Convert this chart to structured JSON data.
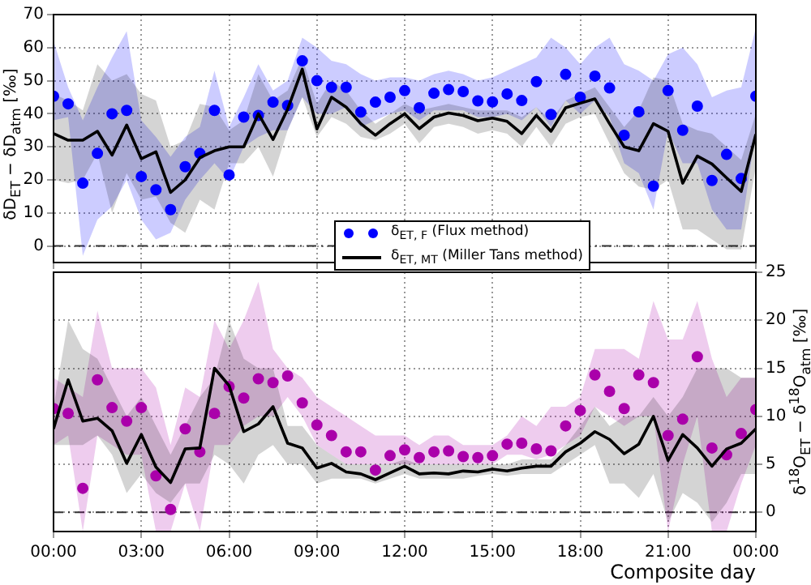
{
  "chart_data": [
    {
      "type": "line",
      "ylabel": "δD$_{ET}$ − δD$_{atm}$ [‰]",
      "x": [
        0,
        0.5,
        1,
        1.5,
        2,
        2.5,
        3,
        3.5,
        4,
        4.5,
        5,
        5.5,
        6,
        6.5,
        7,
        7.5,
        8,
        8.5,
        9,
        9.5,
        10,
        10.5,
        11,
        11.5,
        12,
        12.5,
        13,
        13.5,
        14,
        14.5,
        15,
        15.5,
        16,
        16.5,
        17,
        17.5,
        18,
        18.5,
        19,
        19.5,
        20,
        20.5,
        21,
        21.5,
        22,
        22.5,
        23,
        23.5,
        24
      ],
      "series": [
        {
          "name": "δ$_{ET, F}$ (Flux method)",
          "type": "scatter",
          "marker": "circle",
          "color": "#0000ff",
          "values": [
            45.3,
            43,
            19,
            28,
            40,
            41,
            21,
            17,
            11,
            24,
            28,
            41,
            21.5,
            39,
            39.5,
            43.5,
            42.5,
            56,
            50,
            48,
            48,
            40.5,
            43.5,
            45,
            47,
            41.8,
            46.2,
            47.3,
            46.7,
            43.9,
            43.6,
            46,
            44,
            49.7,
            39.8,
            51.9,
            45,
            51.4,
            47.8,
            33.5,
            40.6,
            18.1,
            47,
            35,
            42.3,
            19.8,
            27.7,
            20.4,
            45.3
          ],
          "lower": [
            38,
            39,
            -3,
            8,
            12,
            20,
            8,
            2,
            4,
            14,
            20,
            25,
            20,
            30,
            33,
            35,
            35,
            45,
            40,
            40,
            42,
            36,
            38,
            40,
            41,
            38,
            41,
            41,
            41,
            39,
            39,
            40,
            38,
            42,
            36,
            44,
            40,
            44,
            39,
            25,
            22,
            11,
            35,
            25,
            25,
            11,
            5,
            5,
            35
          ],
          "upper": [
            62,
            48,
            38,
            48,
            57,
            65,
            38,
            33,
            27,
            33,
            36,
            53,
            36,
            45,
            55,
            47,
            50,
            63,
            60,
            56,
            55,
            52,
            50,
            51,
            51,
            50,
            52,
            53,
            52,
            50,
            51,
            53,
            55,
            57,
            63,
            60,
            55,
            60,
            63,
            55,
            53,
            50,
            58,
            60,
            55,
            45,
            47,
            48,
            66
          ]
        },
        {
          "name": "δ$_{ET, MT}$ (Miller Tans method)",
          "type": "line",
          "marker": "none",
          "line_style": "solid",
          "color": "#000000",
          "values": [
            34,
            32,
            32,
            34.7,
            27.5,
            36.6,
            26.4,
            28.5,
            16.2,
            20,
            26.7,
            28.8,
            30,
            30,
            40,
            32.2,
            41.4,
            53.5,
            35.4,
            45,
            42,
            37,
            33.5,
            37,
            40,
            35.5,
            39,
            40.2,
            39.5,
            37.9,
            38.7,
            37.7,
            34,
            39.5,
            34.7,
            41.8,
            43.2,
            44.5,
            37,
            30,
            28.8,
            37,
            34.7,
            19,
            27.2,
            24.8,
            20.6,
            16.5,
            33.8
          ],
          "lower": [
            20,
            19,
            20,
            28,
            10,
            22,
            14,
            15,
            7,
            4,
            14,
            11,
            25,
            25,
            30,
            21,
            35,
            45,
            33,
            39,
            37,
            33,
            32,
            34,
            37,
            31,
            36,
            37,
            36,
            34,
            35,
            34,
            30,
            36,
            30,
            37,
            39,
            40,
            31,
            22,
            18,
            17,
            20,
            5,
            5,
            2,
            -1,
            -1,
            24
          ],
          "upper": [
            46,
            44,
            41,
            55,
            50,
            52,
            46,
            44,
            30,
            32,
            43,
            42,
            35,
            38,
            52,
            44,
            47,
            57,
            43,
            50,
            47,
            41,
            37,
            40,
            43,
            41,
            42,
            43,
            42,
            41,
            41,
            41,
            39,
            42,
            38,
            44,
            46,
            48,
            42,
            36,
            41,
            51,
            50,
            37,
            35,
            34,
            30,
            26,
            40
          ]
        }
      ],
      "xlim": [
        0,
        24
      ],
      "xticks": [
        {
          "value": 0,
          "label": null
        },
        {
          "value": 3,
          "label": null
        },
        {
          "value": 6,
          "label": null
        },
        {
          "value": 9,
          "label": null
        },
        {
          "value": 12,
          "label": null
        },
        {
          "value": 15,
          "label": null
        },
        {
          "value": 18,
          "label": null
        },
        {
          "value": 21,
          "label": null
        },
        {
          "value": 24,
          "label": null
        }
      ],
      "ylim": [
        -5,
        70
      ],
      "yticks": [
        0,
        10,
        20,
        30,
        40,
        50,
        60,
        70
      ],
      "tick_labels": "y",
      "grid": true,
      "legend": "bottom",
      "ref_lines": [
        {
          "axis": "y",
          "value": 0,
          "line_style": "dashed"
        }
      ]
    },
    {
      "type": "line",
      "xlabel": "Composite day",
      "y2label": "δ$^{18}$O$_{ET}$ − δ$^{18}$O$_{atm}$ [‰]",
      "x": [
        0,
        0.5,
        1,
        1.5,
        2,
        2.5,
        3,
        3.5,
        4,
        4.5,
        5,
        5.5,
        6,
        6.5,
        7,
        7.5,
        8,
        8.5,
        9,
        9.5,
        10,
        10.5,
        11,
        11.5,
        12,
        12.5,
        13,
        13.5,
        14,
        14.5,
        15,
        15.5,
        16,
        16.5,
        17,
        17.5,
        18,
        18.5,
        19,
        19.5,
        20,
        20.5,
        21,
        21.5,
        22,
        22.5,
        23,
        23.5,
        24
      ],
      "series": [
        {
          "type": "scatter",
          "marker": "circle",
          "axis": "y2",
          "color": "#aa00aa",
          "values": [
            10.8,
            10.3,
            2.5,
            13.8,
            10.9,
            9.5,
            10.9,
            3.8,
            0.3,
            8.7,
            6.3,
            10.3,
            13.1,
            11.9,
            13.9,
            13.5,
            14.2,
            11.4,
            9.1,
            8,
            6.3,
            6.3,
            4.4,
            5.9,
            6.5,
            5.7,
            6.3,
            6.4,
            5.8,
            5.7,
            5.9,
            7.1,
            7.2,
            6.6,
            6.4,
            9,
            10.6,
            14.3,
            12.6,
            10.8,
            14.3,
            13.5,
            8,
            9.7,
            16.2,
            6.7,
            6,
            8.2,
            10.7
          ],
          "lower": [
            7,
            8,
            -2,
            8,
            7,
            6,
            6,
            -2,
            -2,
            3,
            -2,
            7,
            7,
            9,
            10,
            10,
            12,
            10,
            7,
            6,
            5,
            5,
            5,
            5,
            5,
            5,
            5,
            5,
            5,
            5,
            5,
            6,
            6,
            5.5,
            6,
            7,
            8,
            11,
            10,
            9,
            10,
            10,
            -2,
            5,
            10,
            -2,
            -2,
            3,
            7
          ],
          "upper": [
            14,
            13,
            12,
            21,
            15,
            15,
            15,
            13,
            7,
            13,
            12,
            20,
            17,
            20,
            24,
            17,
            15,
            14,
            12,
            11,
            10,
            9,
            8,
            8,
            8,
            7,
            8,
            8,
            7,
            7,
            7,
            8,
            10,
            9,
            11,
            11,
            12,
            17,
            17,
            17,
            16,
            22,
            18,
            18,
            22,
            16,
            12,
            14,
            14
          ]
        },
        {
          "type": "line",
          "marker": "none",
          "line_style": "solid",
          "axis": "y2",
          "color": "#000000",
          "values": [
            8.7,
            13.8,
            9.5,
            9.8,
            8.5,
            5.1,
            8.1,
            4.7,
            3.1,
            6.6,
            6.7,
            15,
            13.2,
            8.4,
            9.2,
            11,
            7.2,
            6.7,
            4.6,
            5.1,
            4.2,
            4,
            3.4,
            4.1,
            4.8,
            4,
            4.1,
            4,
            4.3,
            4.2,
            4.5,
            4.3,
            4.6,
            4.8,
            4.8,
            6.3,
            7.2,
            8.4,
            7.6,
            6.1,
            7.1,
            10,
            5.4,
            8.1,
            6.7,
            4.8,
            6.6,
            7.2,
            8.7
          ],
          "lower": [
            7,
            7,
            7,
            8,
            6,
            2,
            4,
            2,
            1,
            3,
            3,
            6,
            5,
            3,
            6,
            7,
            5,
            5,
            3,
            3.5,
            3.5,
            3.5,
            3,
            3.5,
            4,
            3.5,
            3.5,
            3.5,
            3.5,
            3.8,
            4,
            3.8,
            4,
            4,
            4,
            5,
            6,
            7,
            3,
            3,
            1.5,
            4,
            -1,
            2,
            1,
            -1,
            1,
            4,
            4
          ],
          "upper": [
            11,
            20,
            17,
            16,
            13,
            10,
            12,
            9,
            6,
            9,
            12,
            14,
            20,
            16,
            15,
            15,
            9,
            9,
            7,
            6,
            5,
            5,
            5,
            5,
            5.5,
            5,
            5,
            5,
            5,
            5,
            5,
            5,
            5.5,
            5.5,
            5.5,
            7,
            9,
            11,
            9,
            10,
            10,
            12,
            10,
            12,
            15,
            15,
            15,
            14,
            14
          ]
        }
      ],
      "xlim": [
        0,
        24
      ],
      "xticks": [
        {
          "value": 0,
          "label": "00:00"
        },
        {
          "value": 3,
          "label": "03:00"
        },
        {
          "value": 6,
          "label": "06:00"
        },
        {
          "value": 9,
          "label": "09:00"
        },
        {
          "value": 12,
          "label": "12:00"
        },
        {
          "value": 15,
          "label": "15:00"
        },
        {
          "value": 18,
          "label": "18:00"
        },
        {
          "value": 21,
          "label": "21:00"
        },
        {
          "value": 24,
          "label": "00:00"
        }
      ],
      "y2lim": [
        -2,
        25
      ],
      "y2ticks": [
        0,
        5,
        10,
        15,
        20,
        25
      ],
      "grid": true,
      "ref_lines": [
        {
          "axis": "y2",
          "value": 0,
          "line_style": "dashed"
        }
      ]
    }
  ]
}
